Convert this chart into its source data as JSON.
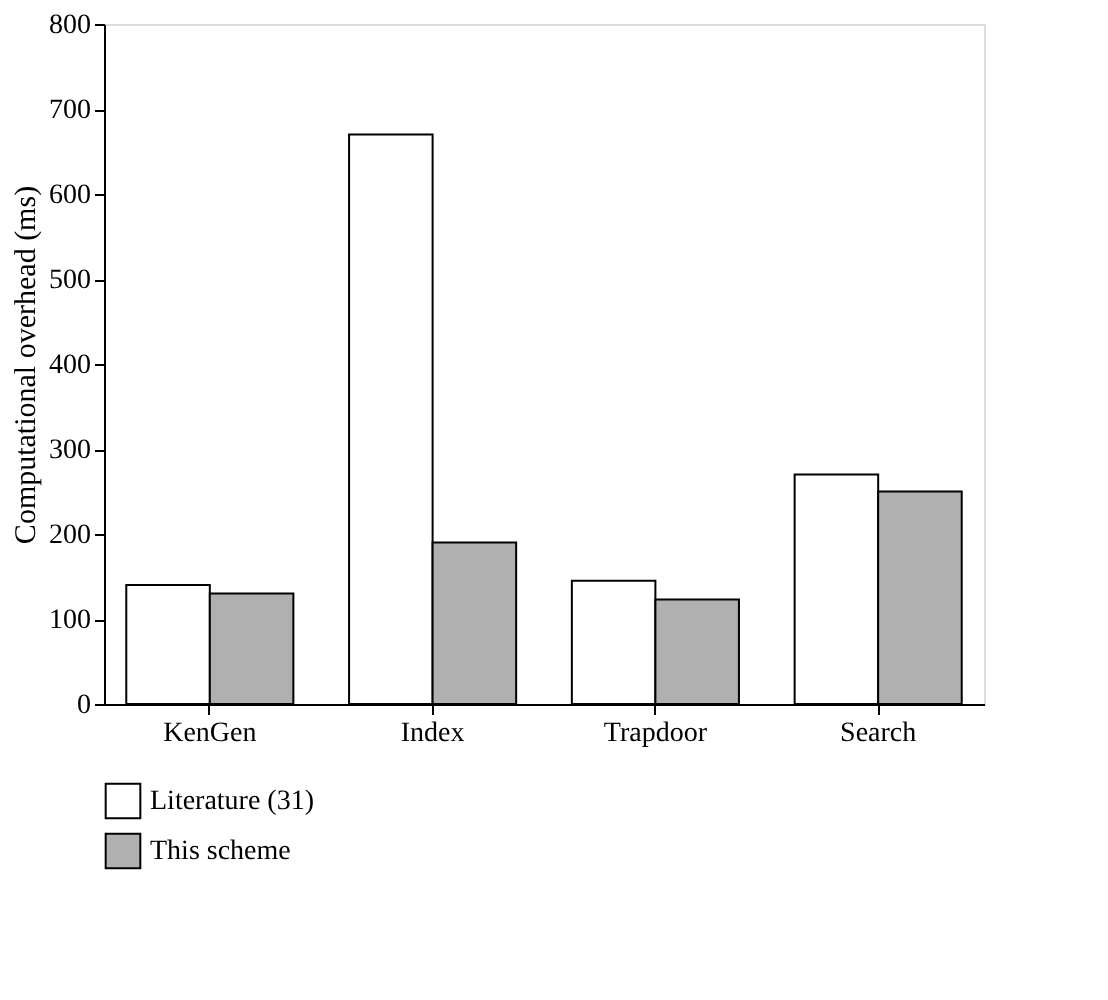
{
  "chart_data": {
    "type": "bar",
    "ylabel": "Computational overhead (ms)",
    "categories": [
      "KenGen",
      "Index",
      "Trapdoor",
      "Search"
    ],
    "series": [
      {
        "name": "Literature (31)",
        "color": "#ffffff",
        "values": [
          140,
          670,
          145,
          270
        ]
      },
      {
        "name": "This scheme",
        "color": "#b0b0b0",
        "values": [
          130,
          190,
          123,
          250
        ]
      }
    ],
    "ylim": [
      0,
      800
    ],
    "yticks": [
      0,
      100,
      200,
      300,
      400,
      500,
      600,
      700,
      800
    ],
    "grid": false,
    "legend": "bottom"
  }
}
